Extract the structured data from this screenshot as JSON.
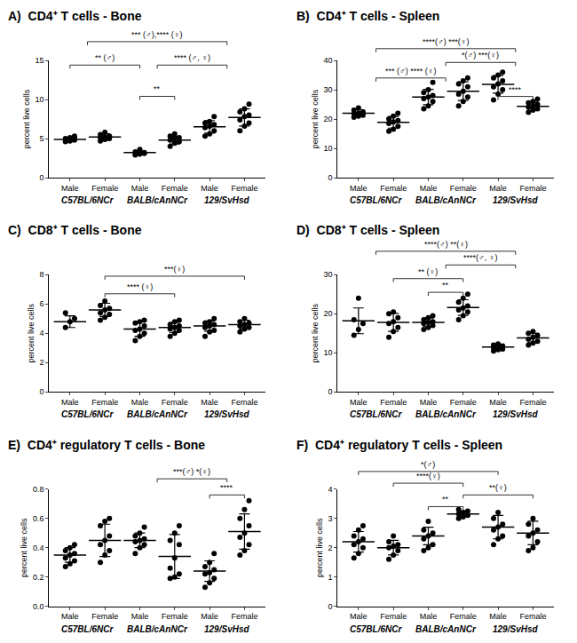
{
  "chart_data": [
    {
      "type": "scatter",
      "title": "A)  CD4⁺ T cells - Bone",
      "y_label": "percent live cells",
      "categories": [
        "Male",
        "Female",
        "Male",
        "Female",
        "Male",
        "Female"
      ],
      "groups": [
        "C57BL/6NCr",
        "BALB/cAnNCr",
        "129/SvHsd"
      ],
      "values": [
        [
          4.6,
          4.7,
          4.8,
          4.8,
          4.9,
          5.0,
          5.0,
          5.1,
          5.3
        ],
        [
          4.7,
          4.9,
          5.0,
          5.1,
          5.2,
          5.3,
          5.5,
          5.8
        ],
        [
          2.9,
          3.0,
          3.1,
          3.1,
          3.2,
          3.2,
          3.3,
          3.6
        ],
        [
          4.0,
          4.4,
          4.6,
          4.8,
          5.0,
          5.1,
          5.3,
          5.6
        ],
        [
          5.3,
          5.6,
          6.0,
          6.4,
          6.6,
          6.8,
          7.0,
          7.2,
          7.8
        ],
        [
          6.0,
          6.6,
          7.0,
          7.4,
          7.8,
          8.0,
          8.4,
          8.8,
          9.4
        ]
      ],
      "means": [
        4.9,
        5.2,
        3.2,
        4.8,
        6.5,
        7.7
      ],
      "sds": [
        0.2,
        0.4,
        0.2,
        0.5,
        0.8,
        1.1
      ],
      "ylim": [
        0,
        15
      ],
      "yticks": [
        0,
        5,
        10,
        15
      ],
      "color": "#000000",
      "marker": "circle",
      "grid": false,
      "brackets": [
        {
          "from": 0,
          "to": 2,
          "y": 14.4,
          "label": "** (♂)"
        },
        {
          "from": 2,
          "to": 3,
          "y": 10.4,
          "label": "**"
        },
        {
          "from": 2.5,
          "to": 4.5,
          "y": 14.4,
          "label": "**** (♂, ♀)"
        },
        {
          "from": 0.5,
          "to": 4.5,
          "y": 17.4,
          "label": "*** (♂),**** (♀)"
        }
      ]
    },
    {
      "type": "scatter",
      "title": "B)  CD4⁺ T cells - Spleen",
      "y_label": "percent live cells",
      "categories": [
        "Male",
        "Female",
        "Male",
        "Female",
        "Male",
        "Female"
      ],
      "groups": [
        "C57BL/6NCr",
        "BALB/cAnNCr",
        "129/SvHsd"
      ],
      "values": [
        [
          20.6,
          21.0,
          21.3,
          21.8,
          22.0,
          22.4,
          23.0,
          23.8
        ],
        [
          15.8,
          16.5,
          17.5,
          18.5,
          19.0,
          19.5,
          20.0,
          21.0,
          22.0
        ],
        [
          23.5,
          24.5,
          26.0,
          27.0,
          27.5,
          28.0,
          29.0,
          30.0,
          32.5
        ],
        [
          24.5,
          26.0,
          27.5,
          28.5,
          29.5,
          31.0,
          32.0,
          33.0,
          34.0
        ],
        [
          26.5,
          28.5,
          30.0,
          31.0,
          32.0,
          33.0,
          34.0,
          35.0,
          36.0
        ],
        [
          22.3,
          23.0,
          23.5,
          24.0,
          24.5,
          25.0,
          25.5,
          26.0,
          26.8
        ]
      ],
      "means": [
        22.0,
        18.9,
        27.5,
        29.5,
        31.8,
        24.3
      ],
      "sds": [
        1.1,
        2.0,
        2.6,
        3.2,
        3.0,
        1.4
      ],
      "ylim": [
        0,
        40
      ],
      "yticks": [
        0,
        10,
        20,
        30,
        40
      ],
      "color": "#000000",
      "marker": "circle",
      "grid": false,
      "brackets": [
        {
          "from": 4,
          "to": 5,
          "y": 27.7,
          "label": "****"
        },
        {
          "from": 0.5,
          "to": 2.5,
          "y": 34.0,
          "label": "*** (♂) **** (♀)"
        },
        {
          "from": 2.5,
          "to": 4.5,
          "y": 39.3,
          "label": "*(♂) ***(♀)"
        },
        {
          "from": 0.5,
          "to": 4.5,
          "y": 44.0,
          "label": "****(♂) ***(♀)"
        }
      ]
    },
    {
      "type": "scatter",
      "title": "C)  CD8⁺ T cells - Bone",
      "y_label": "percent live cells",
      "categories": [
        "Male",
        "Female",
        "Male",
        "Female",
        "Male",
        "Female"
      ],
      "groups": [
        "C57BL/6NCr",
        "BALB/cAnNCr",
        "129/SvHsd"
      ],
      "values": [
        [
          4.4,
          4.8,
          5.0,
          5.4
        ],
        [
          4.9,
          5.1,
          5.3,
          5.4,
          5.6,
          5.7,
          5.9,
          6.2
        ],
        [
          3.5,
          3.8,
          4.0,
          4.2,
          4.3,
          4.5,
          4.7,
          4.8,
          4.9
        ],
        [
          3.8,
          4.0,
          4.2,
          4.3,
          4.4,
          4.5,
          4.6,
          4.8,
          4.9
        ],
        [
          3.8,
          4.1,
          4.2,
          4.4,
          4.5,
          4.6,
          4.7,
          4.8,
          5.0
        ],
        [
          4.1,
          4.3,
          4.4,
          4.5,
          4.6,
          4.7,
          4.8,
          5.0
        ]
      ],
      "means": [
        4.8,
        5.6,
        4.3,
        4.4,
        4.5,
        4.6
      ],
      "sds": [
        0.4,
        0.45,
        0.5,
        0.35,
        0.35,
        0.3
      ],
      "ylim": [
        0,
        8
      ],
      "yticks": [
        0,
        2,
        4,
        6,
        8
      ],
      "color": "#000000",
      "marker": "circle",
      "grid": false,
      "brackets": [
        {
          "from": 1,
          "to": 3,
          "y": 6.7,
          "label": "**** (♀)"
        },
        {
          "from": 1,
          "to": 5,
          "y": 7.9,
          "label": "***(♀)"
        }
      ]
    },
    {
      "type": "scatter",
      "title": "D)  CD8⁺ T cells - Spleen",
      "y_label": "percent live cells",
      "categories": [
        "Male",
        "Female",
        "Male",
        "Female",
        "Male",
        "Female"
      ],
      "groups": [
        "C57BL/6NCr",
        "BALB/cAnNCr",
        "129/SvHsd"
      ],
      "values": [
        [
          14.5,
          16.0,
          17.5,
          18.5,
          24.0
        ],
        [
          14.0,
          15.5,
          16.5,
          17.5,
          18.0,
          19.0,
          20.0,
          20.5
        ],
        [
          16.0,
          16.5,
          17.0,
          17.5,
          17.8,
          18.0,
          18.5,
          19.0,
          19.5
        ],
        [
          18.5,
          19.5,
          20.5,
          21.0,
          21.5,
          22.0,
          23.0,
          24.0,
          25.0
        ],
        [
          10.5,
          10.8,
          11.0,
          11.3,
          11.5,
          11.8,
          12.0,
          12.3
        ],
        [
          12.0,
          12.5,
          13.0,
          13.5,
          14.0,
          14.5,
          15.0,
          15.5
        ]
      ],
      "means": [
        18.2,
        17.8,
        17.8,
        21.6,
        11.5,
        13.8
      ],
      "sds": [
        3.3,
        2.3,
        1.1,
        2.0,
        0.6,
        1.2
      ],
      "ylim": [
        0,
        30
      ],
      "yticks": [
        0,
        10,
        20,
        30
      ],
      "color": "#000000",
      "marker": "circle",
      "grid": false,
      "brackets": [
        {
          "from": 2,
          "to": 3,
          "y": 25.5,
          "label": "**"
        },
        {
          "from": 1,
          "to": 3,
          "y": 29.0,
          "label": "** (♀)"
        },
        {
          "from": 2.5,
          "to": 4.5,
          "y": 32.5,
          "label": "****(♂, ♀)"
        },
        {
          "from": 0.5,
          "to": 4.5,
          "y": 36.0,
          "label": "****(♂) **(♀)"
        }
      ]
    },
    {
      "type": "scatter",
      "title": "E)  CD4⁺ regulatory T cells - Bone",
      "y_label": "percent live cells",
      "categories": [
        "Male",
        "Female",
        "Male",
        "Female",
        "Male",
        "Female"
      ],
      "groups": [
        "C57BL/6NCr",
        "BALB/cAnNCr",
        "129/SvHsd"
      ],
      "values": [
        [
          0.27,
          0.29,
          0.31,
          0.33,
          0.35,
          0.36,
          0.38,
          0.4,
          0.42
        ],
        [
          0.3,
          0.35,
          0.38,
          0.42,
          0.45,
          0.48,
          0.55,
          0.58,
          0.6
        ],
        [
          0.36,
          0.4,
          0.42,
          0.44,
          0.45,
          0.46,
          0.48,
          0.5,
          0.54
        ],
        [
          0.19,
          0.2,
          0.22,
          0.26,
          0.33,
          0.42,
          0.45,
          0.5,
          0.55
        ],
        [
          0.13,
          0.16,
          0.19,
          0.22,
          0.23,
          0.25,
          0.27,
          0.3,
          0.36
        ],
        [
          0.35,
          0.38,
          0.42,
          0.47,
          0.5,
          0.55,
          0.6,
          0.66,
          0.72
        ]
      ],
      "means": [
        0.35,
        0.45,
        0.45,
        0.34,
        0.24,
        0.51
      ],
      "sds": [
        0.05,
        0.11,
        0.05,
        0.15,
        0.07,
        0.12
      ],
      "ylim": [
        0,
        0.8
      ],
      "yticks": [
        {
          "value": 0,
          "label": "0.0"
        },
        0.2,
        0.4,
        0.6,
        0.8
      ],
      "color": "#000000",
      "marker": "circle",
      "grid": false,
      "brackets": [
        {
          "from": 4,
          "to": 5,
          "y": 0.76,
          "label": "****"
        },
        {
          "from": 2.5,
          "to": 4.5,
          "y": 0.87,
          "label": "***(♂) *(♀)"
        }
      ]
    },
    {
      "type": "scatter",
      "title": "F)  CD4⁺ regulatory T cells - Spleen",
      "y_label": "percent live cells",
      "categories": [
        "Male",
        "Female",
        "Male",
        "Female",
        "Male",
        "Female"
      ],
      "groups": [
        "C57BL/6NCr",
        "BALB/cAnNCr",
        "129/SvHsd"
      ],
      "values": [
        [
          1.65,
          1.8,
          2.0,
          2.1,
          2.2,
          2.3,
          2.4,
          2.6,
          2.75
        ],
        [
          1.6,
          1.75,
          1.9,
          2.0,
          2.05,
          2.1,
          2.2,
          2.4
        ],
        [
          1.9,
          2.0,
          2.1,
          2.3,
          2.4,
          2.5,
          2.6,
          2.9
        ],
        [
          3.0,
          3.05,
          3.1,
          3.15,
          3.2,
          3.25,
          3.3
        ],
        [
          2.1,
          2.3,
          2.4,
          2.6,
          2.7,
          2.8,
          3.0,
          3.2
        ],
        [
          1.9,
          2.0,
          2.2,
          2.4,
          2.5,
          2.6,
          2.8,
          3.0
        ]
      ],
      "means": [
        2.2,
        2.0,
        2.4,
        3.15,
        2.7,
        2.5
      ],
      "sds": [
        0.35,
        0.25,
        0.3,
        0.1,
        0.4,
        0.4
      ],
      "ylim": [
        0,
        4
      ],
      "yticks": [
        0,
        1,
        2,
        3,
        4
      ],
      "color": "#000000",
      "marker": "circle",
      "grid": false,
      "brackets": [
        {
          "from": 2,
          "to": 3,
          "y": 3.4,
          "label": "**"
        },
        {
          "from": 3,
          "to": 5,
          "y": 3.8,
          "label": "**(♀)"
        },
        {
          "from": 1,
          "to": 3,
          "y": 4.2,
          "label": "****(♀)"
        },
        {
          "from": 0,
          "to": 4,
          "y": 4.6,
          "label": "*(♂)"
        }
      ]
    }
  ]
}
